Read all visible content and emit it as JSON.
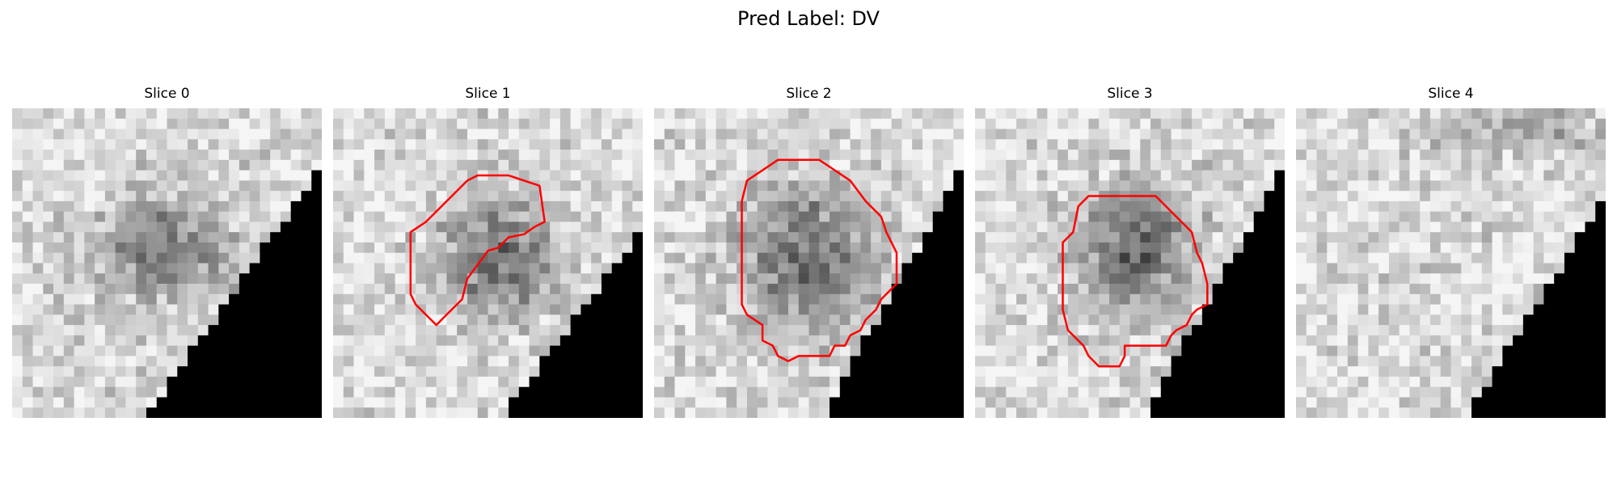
{
  "figure": {
    "title": "Pred Label: DV"
  },
  "panels": [
    {
      "title": "Slice 0",
      "has_contour": false
    },
    {
      "title": "Slice 1",
      "has_contour": true
    },
    {
      "title": "Slice 2",
      "has_contour": true
    },
    {
      "title": "Slice 3",
      "has_contour": true
    },
    {
      "title": "Slice 4",
      "has_contour": false
    }
  ],
  "colors": {
    "contour": "#ff0000",
    "masked_region": "#000000",
    "background": "#ffffff"
  }
}
